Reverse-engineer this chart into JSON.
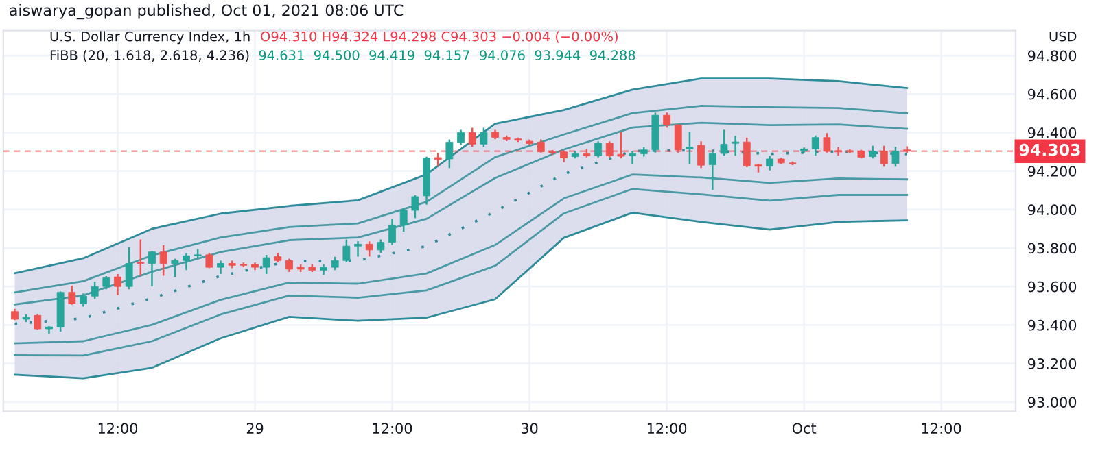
{
  "chart_data": {
    "type": "candlestick",
    "title": "U.S. Dollar Currency Index, 1h",
    "annotations": [
      "aiswarya_gopan published, Oct 01, 2021 08:06 UTC",
      "O94.310 H94.324 L94.298 C94.303 −0.004 (−0.00%)",
      "FiBB (20, 1.618, 2.618, 4.236)",
      "94.631  94.500  94.419  94.157  94.076  93.944  94.288",
      "USD"
    ],
    "x": [
      "2021-09-28T03:00",
      "2021-09-28T04:00",
      "2021-09-28T05:00",
      "2021-09-28T06:00",
      "2021-09-28T07:00",
      "2021-09-28T08:00",
      "2021-09-28T09:00",
      "2021-09-28T10:00",
      "2021-09-28T11:00",
      "2021-09-28T12:00",
      "2021-09-28T13:00",
      "2021-09-28T14:00",
      "2021-09-28T15:00",
      "2021-09-28T16:00",
      "2021-09-28T17:00",
      "2021-09-28T18:00",
      "2021-09-28T19:00",
      "2021-09-28T20:00",
      "2021-09-28T21:00",
      "2021-09-28T22:00",
      "2021-09-28T23:00",
      "2021-09-29T00:00",
      "2021-09-29T01:00",
      "2021-09-29T02:00",
      "2021-09-29T03:00",
      "2021-09-29T04:00",
      "2021-09-29T05:00",
      "2021-09-29T06:00",
      "2021-09-29T07:00",
      "2021-09-29T08:00",
      "2021-09-29T09:00",
      "2021-09-29T10:00",
      "2021-09-29T11:00",
      "2021-09-29T12:00",
      "2021-09-29T13:00",
      "2021-09-29T14:00",
      "2021-09-29T15:00",
      "2021-09-29T16:00",
      "2021-09-29T17:00",
      "2021-09-29T18:00",
      "2021-09-29T19:00",
      "2021-09-29T20:00",
      "2021-09-29T21:00",
      "2021-09-29T22:00",
      "2021-09-29T23:00",
      "2021-09-30T00:00",
      "2021-09-30T01:00",
      "2021-09-30T02:00",
      "2021-09-30T03:00",
      "2021-09-30T04:00",
      "2021-09-30T05:00",
      "2021-09-30T06:00",
      "2021-09-30T07:00",
      "2021-09-30T08:00",
      "2021-09-30T09:00",
      "2021-09-30T10:00",
      "2021-09-30T11:00",
      "2021-09-30T12:00",
      "2021-09-30T13:00",
      "2021-09-30T14:00",
      "2021-09-30T15:00",
      "2021-09-30T16:00",
      "2021-09-30T17:00",
      "2021-09-30T18:00",
      "2021-09-30T19:00",
      "2021-09-30T20:00",
      "2021-09-30T21:00",
      "2021-09-30T22:00",
      "2021-09-30T23:00",
      "2021-10-01T00:00",
      "2021-10-01T01:00",
      "2021-10-01T02:00",
      "2021-10-01T03:00",
      "2021-10-01T04:00",
      "2021-10-01T05:00",
      "2021-10-01T06:00",
      "2021-10-01T07:00",
      "2021-10-01T08:00",
      "2021-10-01T09:00"
    ],
    "ohlc": [
      [
        93.47,
        93.48,
        93.43,
        93.43
      ],
      [
        93.43,
        93.45,
        93.42,
        93.44
      ],
      [
        93.45,
        93.45,
        93.38,
        93.38
      ],
      [
        93.38,
        93.39,
        93.36,
        93.39
      ],
      [
        93.39,
        93.57,
        93.37,
        93.57
      ],
      [
        93.57,
        93.6,
        93.51,
        93.51
      ],
      [
        93.51,
        93.56,
        93.5,
        93.55
      ],
      [
        93.55,
        93.62,
        93.54,
        93.6
      ],
      [
        93.6,
        93.65,
        93.59,
        93.645
      ],
      [
        93.65,
        93.66,
        93.56,
        93.6
      ],
      [
        93.6,
        93.8,
        93.59,
        93.72
      ],
      [
        93.725,
        93.84,
        93.66,
        93.72
      ],
      [
        93.72,
        93.78,
        93.605,
        93.78
      ],
      [
        93.78,
        93.81,
        93.66,
        93.72
      ],
      [
        93.72,
        93.74,
        93.655,
        93.735
      ],
      [
        93.735,
        93.77,
        93.69,
        93.76
      ],
      [
        93.76,
        93.79,
        93.75,
        93.765
      ],
      [
        93.765,
        93.77,
        93.7,
        93.7
      ],
      [
        93.7,
        93.73,
        93.67,
        93.72
      ],
      [
        93.72,
        93.73,
        93.7,
        93.71
      ],
      [
        93.715,
        93.72,
        93.705,
        93.71
      ],
      [
        93.715,
        93.72,
        93.69,
        93.7
      ],
      [
        93.7,
        93.76,
        93.67,
        93.75
      ],
      [
        93.755,
        93.77,
        93.73,
        93.735
      ],
      [
        93.735,
        93.74,
        93.68,
        93.69
      ],
      [
        93.7,
        93.71,
        93.68,
        93.69
      ],
      [
        93.7,
        93.71,
        93.68,
        93.685
      ],
      [
        93.685,
        93.71,
        93.665,
        93.7
      ],
      [
        93.7,
        93.75,
        93.69,
        93.735
      ],
      [
        93.735,
        93.84,
        93.73,
        93.81
      ],
      [
        93.81,
        93.83,
        93.76,
        93.82
      ],
      [
        93.82,
        93.83,
        93.76,
        93.79
      ],
      [
        93.79,
        93.84,
        93.78,
        93.83
      ],
      [
        93.83,
        93.945,
        93.82,
        93.92
      ],
      [
        93.92,
        94.0,
        93.89,
        93.996
      ],
      [
        93.996,
        94.07,
        93.96,
        94.067
      ],
      [
        94.071,
        94.27,
        94.03,
        94.268
      ],
      [
        94.27,
        94.29,
        94.23,
        94.26
      ],
      [
        94.263,
        94.36,
        94.22,
        94.35
      ],
      [
        94.35,
        94.41,
        94.34,
        94.4
      ],
      [
        94.4,
        94.42,
        94.33,
        94.34
      ],
      [
        94.34,
        94.42,
        94.33,
        94.4
      ],
      [
        94.403,
        94.41,
        94.37,
        94.375
      ],
      [
        94.375,
        94.38,
        94.36,
        94.365
      ],
      [
        94.367,
        94.37,
        94.355,
        94.36
      ],
      [
        94.355,
        94.36,
        94.34,
        94.343
      ],
      [
        94.35,
        94.36,
        94.3,
        94.3
      ],
      [
        94.3,
        94.305,
        94.29,
        94.294
      ],
      [
        94.299,
        94.3,
        94.25,
        94.268
      ],
      [
        94.275,
        94.3,
        94.27,
        94.29
      ],
      [
        94.29,
        94.31,
        94.275,
        94.28
      ],
      [
        94.28,
        94.35,
        94.275,
        94.346
      ],
      [
        94.346,
        94.35,
        94.275,
        94.28
      ],
      [
        94.287,
        94.4,
        94.27,
        94.277
      ],
      [
        94.28,
        94.3,
        94.24,
        94.29
      ],
      [
        94.29,
        94.32,
        94.28,
        94.31
      ],
      [
        94.31,
        94.5,
        94.3,
        94.49
      ],
      [
        94.49,
        94.5,
        94.43,
        94.44
      ],
      [
        94.44,
        94.44,
        94.3,
        94.31
      ],
      [
        94.315,
        94.4,
        94.24,
        94.325
      ],
      [
        94.334,
        94.35,
        94.22,
        94.23
      ],
      [
        94.233,
        94.3,
        94.106,
        94.29
      ],
      [
        94.291,
        94.41,
        94.284,
        94.339
      ],
      [
        94.344,
        94.379,
        94.284,
        94.351
      ],
      [
        94.351,
        94.37,
        94.225,
        94.227
      ],
      [
        94.232,
        94.232,
        94.197,
        94.225
      ],
      [
        94.225,
        94.275,
        94.208,
        94.263
      ],
      [
        94.263,
        94.265,
        94.24,
        94.242
      ],
      [
        94.242,
        94.245,
        94.235,
        94.237
      ],
      [
        94.306,
        94.318,
        94.3,
        94.315
      ],
      [
        94.315,
        94.38,
        94.284,
        94.374
      ],
      [
        94.374,
        94.393,
        94.3,
        94.303
      ],
      [
        94.306,
        94.32,
        94.284,
        94.299
      ],
      [
        94.306,
        94.31,
        94.296,
        94.299
      ],
      [
        94.303,
        94.306,
        94.27,
        94.272
      ],
      [
        94.275,
        94.327,
        94.27,
        94.303
      ],
      [
        94.303,
        94.327,
        94.227,
        94.237
      ],
      [
        94.239,
        94.322,
        94.227,
        94.303
      ],
      [
        94.31,
        94.324,
        94.298,
        94.303
      ]
    ],
    "series": [
      {
        "type": "line",
        "line_style": "dotted",
        "color": "#2e8b99",
        "x": [
          "2021-09-28T03:00",
          "2021-09-28T09:00",
          "2021-09-28T15:00",
          "2021-09-28T21:00",
          "2021-09-29T03:00",
          "2021-09-29T09:00",
          "2021-09-29T15:00",
          "2021-09-29T21:00",
          "2021-09-30T03:00",
          "2021-09-30T09:00",
          "2021-09-30T15:00",
          "2021-09-30T21:00",
          "2021-10-01T03:00",
          "2021-10-01T09:00"
        ],
        "values": [
          93.406,
          93.435,
          93.539,
          93.655,
          93.731,
          93.735,
          93.81,
          93.99,
          94.185,
          94.304,
          94.309,
          94.289,
          94.302,
          94.288
        ],
        "lower": [
          93.142,
          93.123,
          93.178,
          93.331,
          93.443,
          93.422,
          93.438,
          93.534,
          93.853,
          93.984,
          93.936,
          93.896,
          93.936,
          93.944
        ],
        "upper": [
          93.669,
          93.747,
          93.9,
          93.979,
          94.019,
          94.048,
          94.183,
          94.446,
          94.517,
          94.623,
          94.681,
          94.681,
          94.667,
          94.631
        ]
      },
      {
        "type": "line",
        "line_style": "solid",
        "color": "#2e8b99",
        "x": [
          "2021-09-28T03:00",
          "2021-09-28T09:00",
          "2021-09-28T15:00",
          "2021-09-28T21:00",
          "2021-09-29T03:00",
          "2021-09-29T09:00",
          "2021-09-29T15:00",
          "2021-09-29T21:00",
          "2021-09-30T03:00",
          "2021-09-30T09:00",
          "2021-09-30T15:00",
          "2021-09-30T21:00",
          "2021-10-01T03:00",
          "2021-10-01T09:00"
        ],
        "values": [
          93.669,
          93.747,
          93.9,
          93.979,
          94.019,
          94.048,
          94.183,
          94.446,
          94.517,
          94.623,
          94.681,
          94.681,
          94.667,
          94.631
        ]
      },
      {
        "type": "line",
        "line_style": "solid",
        "color": "#2e8b99",
        "x": [
          "2021-09-28T03:00",
          "2021-09-28T09:00",
          "2021-09-28T15:00",
          "2021-09-28T21:00",
          "2021-09-29T03:00",
          "2021-09-29T09:00",
          "2021-09-29T15:00",
          "2021-09-29T21:00",
          "2021-09-30T03:00",
          "2021-09-30T09:00",
          "2021-09-30T15:00",
          "2021-09-30T21:00",
          "2021-10-01T03:00",
          "2021-10-01T09:00"
        ],
        "values": [
          93.142,
          93.123,
          93.178,
          93.331,
          93.443,
          93.422,
          93.438,
          93.534,
          93.853,
          93.984,
          93.936,
          93.896,
          93.936,
          93.944
        ]
      },
      {
        "type": "line",
        "line_style": "solid",
        "color": "#4a9aa5",
        "x": [
          "2021-09-28T03:00",
          "2021-09-28T09:00",
          "2021-09-28T15:00",
          "2021-09-28T21:00",
          "2021-09-29T03:00",
          "2021-09-29T09:00",
          "2021-09-29T15:00",
          "2021-09-29T21:00",
          "2021-09-30T03:00",
          "2021-09-30T09:00",
          "2021-09-30T15:00",
          "2021-09-30T21:00",
          "2021-10-01T03:00",
          "2021-10-01T09:00"
        ],
        "values": [
          93.569,
          93.628,
          93.762,
          93.855,
          93.909,
          93.928,
          94.04,
          94.272,
          94.39,
          94.501,
          94.539,
          94.532,
          94.528,
          94.5
        ]
      },
      {
        "type": "line",
        "line_style": "solid",
        "color": "#4a9aa5",
        "x": [
          "2021-09-28T03:00",
          "2021-09-28T09:00",
          "2021-09-28T15:00",
          "2021-09-28T21:00",
          "2021-09-29T03:00",
          "2021-09-29T09:00",
          "2021-09-29T15:00",
          "2021-09-29T21:00",
          "2021-09-30T03:00",
          "2021-09-30T09:00",
          "2021-09-30T15:00",
          "2021-09-30T21:00",
          "2021-10-01T03:00",
          "2021-10-01T09:00"
        ],
        "values": [
          93.507,
          93.554,
          93.677,
          93.779,
          93.841,
          93.855,
          93.952,
          94.164,
          94.312,
          94.426,
          94.451,
          94.439,
          94.442,
          94.419
        ]
      },
      {
        "type": "line",
        "line_style": "solid",
        "color": "#4a9aa5",
        "x": [
          "2021-09-28T03:00",
          "2021-09-28T09:00",
          "2021-09-28T15:00",
          "2021-09-28T21:00",
          "2021-09-29T03:00",
          "2021-09-29T09:00",
          "2021-09-29T15:00",
          "2021-09-29T21:00",
          "2021-09-30T03:00",
          "2021-09-30T09:00",
          "2021-09-30T15:00",
          "2021-09-30T21:00",
          "2021-10-01T03:00",
          "2021-10-01T09:00"
        ],
        "values": [
          93.305,
          93.316,
          93.401,
          93.531,
          93.621,
          93.615,
          93.668,
          93.816,
          94.058,
          94.182,
          94.167,
          94.139,
          94.162,
          94.157
        ]
      },
      {
        "type": "line",
        "line_style": "solid",
        "color": "#4a9aa5",
        "x": [
          "2021-09-28T03:00",
          "2021-09-28T09:00",
          "2021-09-28T15:00",
          "2021-09-28T21:00",
          "2021-09-29T03:00",
          "2021-09-29T09:00",
          "2021-09-29T15:00",
          "2021-09-29T21:00",
          "2021-09-30T03:00",
          "2021-09-30T09:00",
          "2021-09-30T15:00",
          "2021-09-30T21:00",
          "2021-10-01T03:00",
          "2021-10-01T09:00"
        ],
        "values": [
          93.243,
          93.242,
          93.316,
          93.455,
          93.553,
          93.542,
          93.58,
          93.708,
          93.98,
          94.107,
          94.079,
          94.046,
          94.076,
          94.076
        ]
      }
    ],
    "ref_lines": [
      {
        "axis": "y",
        "value": 94.303,
        "label": "94.303",
        "color": "#f23645",
        "line_style": "dashed"
      }
    ],
    "xlim": [
      "2021-09-28T02:00",
      "2021-10-01T18:30"
    ],
    "xticks": [
      {
        "value": "2021-09-28T12:00",
        "label": "12:00"
      },
      {
        "value": "2021-09-29T00:00",
        "label": "29"
      },
      {
        "value": "2021-09-29T12:00",
        "label": "12:00"
      },
      {
        "value": "2021-09-30T00:00",
        "label": "30"
      },
      {
        "value": "2021-09-30T12:00",
        "label": "12:00"
      },
      {
        "value": "2021-10-01T00:00",
        "label": "Oct"
      },
      {
        "value": "2021-10-01T12:00",
        "label": "12:00"
      }
    ],
    "ylim": [
      92.952,
      94.93
    ],
    "yticks": [
      {
        "value": 93.0,
        "label": "93.000"
      },
      {
        "value": 93.2,
        "label": "93.200"
      },
      {
        "value": 93.4,
        "label": "93.400"
      },
      {
        "value": 93.6,
        "label": "93.600"
      },
      {
        "value": 93.8,
        "label": "93.800"
      },
      {
        "value": 94.0,
        "label": "94.000"
      },
      {
        "value": 94.2,
        "label": "94.200"
      },
      {
        "value": 94.4,
        "label": "94.400"
      },
      {
        "value": 94.6,
        "label": "94.600"
      },
      {
        "value": 94.8,
        "label": "94.800"
      }
    ],
    "grid": true
  }
}
